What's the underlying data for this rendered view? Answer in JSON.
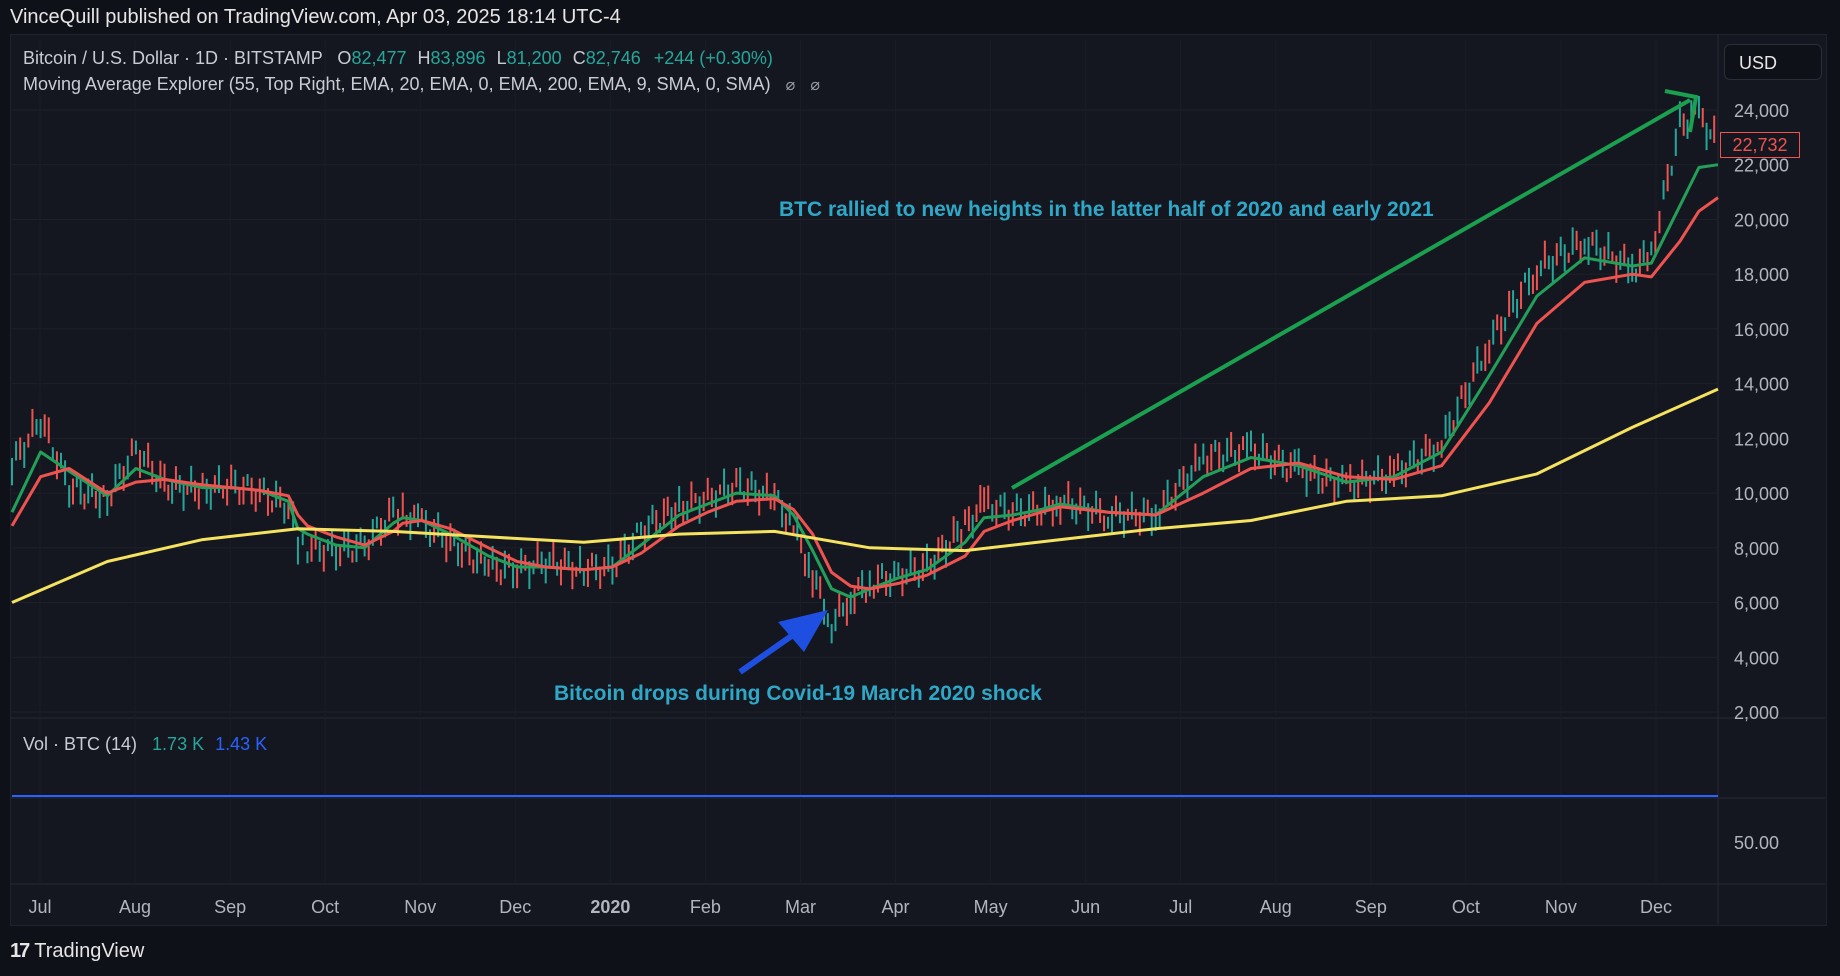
{
  "header": {
    "published_line": "VinceQuill published on TradingView.com, Apr 03, 2025 18:14 UTC-4"
  },
  "legend": {
    "symbol": "Bitcoin / U.S. Dollar · 1D · BITSTAMP",
    "o_label": "O",
    "o_value": "82,477",
    "h_label": "H",
    "h_value": "83,896",
    "l_label": "L",
    "l_value": "81,200",
    "c_label": "C",
    "c_value": "82,746",
    "change": "+244 (+0.30%)",
    "indicator": "Moving Average Explorer (55, Top Right, EMA, 20, EMA, 0, EMA, 200, EMA, 9, SMA, 0, SMA)",
    "indicator_icons": [
      "eye-off-icon",
      "eye-off-icon"
    ]
  },
  "volume_legend": {
    "label": "Vol · BTC (14)",
    "v1": "1.73 K",
    "v2": "1.43 K"
  },
  "currency_button": "USD",
  "last_price_tag": "22,732",
  "annotations": {
    "top": "BTC rallied to new heights in the latter half of 2020 and early 2021",
    "bottom": "Bitcoin drops during Covid-19 March 2020 shock"
  },
  "footer": {
    "brand": "TradingView",
    "logo_icon": "tradingview-logo-icon"
  },
  "colors": {
    "background": "#141720",
    "up": "#26a69a",
    "down": "#ef5350",
    "ema_fast": "#22a05a",
    "ema_mid": "#ef5350",
    "ema_slow": "#f5e35f",
    "volume": "#2962ff",
    "annotation_text": "#2fa7c6",
    "arrow_green": "#1aa04e",
    "arrow_blue": "#1e4fe0"
  },
  "chart_data": {
    "type": "line",
    "y_axis": {
      "ticks": [
        "24,000",
        "22,000",
        "20,000",
        "18,000",
        "16,000",
        "14,000",
        "12,000",
        "10,000",
        "8,000",
        "6,000",
        "4,000",
        "2,000"
      ],
      "ylim": [
        2000,
        24000
      ]
    },
    "volume_axis": {
      "ticks": [
        "50.00"
      ]
    },
    "x_axis": {
      "ticks": [
        "Jul",
        "Aug",
        "Sep",
        "Oct",
        "Nov",
        "Dec",
        "2020",
        "Feb",
        "Mar",
        "Apr",
        "May",
        "Jun",
        "Jul",
        "Aug",
        "Sep",
        "Oct",
        "Nov",
        "Dec"
      ]
    },
    "series": [
      {
        "key": "price",
        "x": [
          0,
          0.3,
          0.6,
          1,
          1.3,
          1.6,
          2,
          2.3,
          2.6,
          2.9,
          3,
          3.1,
          3.4,
          3.7,
          4,
          4.1,
          4.3,
          4.6,
          5,
          5.3,
          5.6,
          6,
          6.3,
          6.6,
          7,
          7.3,
          7.6,
          8,
          8.2,
          8.4,
          8.6,
          8.8,
          9,
          9.3,
          9.6,
          10,
          10.2,
          10.5,
          10.8,
          11,
          11.5,
          12,
          12.5,
          13,
          13.5,
          14,
          14.5,
          15,
          15.5,
          16,
          16.5,
          17,
          17.2,
          17.5,
          17.7,
          17.9
        ],
        "values": [
          11000,
          12700,
          10200,
          9800,
          11600,
          10300,
          10100,
          10300,
          10000,
          9500,
          8200,
          8000,
          7900,
          8100,
          9300,
          9200,
          8900,
          8200,
          7300,
          7200,
          7500,
          7200,
          7300,
          8600,
          9500,
          9800,
          10300,
          9800,
          8800,
          7000,
          5200,
          6200,
          6700,
          7000,
          7300,
          8800,
          9600,
          9300,
          9400,
          9700,
          9200,
          9200,
          11300,
          11600,
          10800,
          10300,
          10700,
          11800,
          15500,
          18200,
          19200,
          18200,
          18700,
          23500,
          23800,
          22732
        ]
      },
      {
        "key": "ema_fast",
        "x": [
          0,
          0.3,
          0.6,
          1,
          1.3,
          1.6,
          2,
          2.3,
          2.6,
          2.9,
          3,
          3.1,
          3.4,
          3.7,
          4,
          4.1,
          4.3,
          4.6,
          5,
          5.3,
          5.6,
          6,
          6.3,
          6.6,
          7,
          7.3,
          7.6,
          8,
          8.2,
          8.4,
          8.6,
          8.8,
          9,
          9.3,
          9.6,
          10,
          10.2,
          10.5,
          10.8,
          11,
          11.5,
          12,
          12.5,
          13,
          13.5,
          14,
          14.5,
          15,
          15.5,
          16,
          16.5,
          17,
          17.2,
          17.5,
          17.7,
          17.9
        ],
        "values": [
          9300,
          11500,
          10800,
          9900,
          10900,
          10500,
          10200,
          10200,
          10100,
          9700,
          8700,
          8500,
          8100,
          8000,
          8900,
          9100,
          9000,
          8500,
          7700,
          7300,
          7300,
          7200,
          7300,
          8100,
          9200,
          9600,
          10000,
          9900,
          9200,
          7900,
          6500,
          6200,
          6500,
          6900,
          7200,
          8200,
          9100,
          9200,
          9400,
          9600,
          9300,
          9200,
          10600,
          11300,
          11000,
          10400,
          10600,
          11500,
          14300,
          17200,
          18600,
          18300,
          18400,
          20500,
          21900,
          22000
        ]
      },
      {
        "key": "ema_mid",
        "x": [
          0,
          0.3,
          0.6,
          1,
          1.3,
          1.6,
          2,
          2.3,
          2.6,
          2.9,
          3,
          3.1,
          3.4,
          3.7,
          4,
          4.1,
          4.3,
          4.6,
          5,
          5.3,
          5.6,
          6,
          6.3,
          6.6,
          7,
          7.3,
          7.6,
          8,
          8.2,
          8.4,
          8.6,
          8.8,
          9,
          9.3,
          9.6,
          10,
          10.2,
          10.5,
          10.8,
          11,
          11.5,
          12,
          12.5,
          13,
          13.5,
          14,
          14.5,
          15,
          15.5,
          16,
          16.5,
          17,
          17.2,
          17.5,
          17.7,
          17.9
        ],
        "values": [
          8800,
          10600,
          10900,
          10000,
          10400,
          10500,
          10300,
          10200,
          10100,
          9900,
          9200,
          8800,
          8400,
          8100,
          8600,
          8900,
          9000,
          8700,
          8000,
          7500,
          7300,
          7200,
          7300,
          7800,
          8800,
          9300,
          9700,
          9800,
          9400,
          8500,
          7100,
          6600,
          6500,
          6700,
          7000,
          7700,
          8600,
          9000,
          9300,
          9500,
          9300,
          9200,
          10000,
          10900,
          11100,
          10600,
          10500,
          11000,
          13300,
          16200,
          17700,
          18000,
          17900,
          19200,
          20300,
          20800
        ]
      },
      {
        "key": "ema_slow",
        "x": [
          0,
          1,
          2,
          3,
          4,
          5,
          6,
          7,
          8,
          9,
          10,
          11,
          12,
          13,
          14,
          15,
          16,
          17,
          17.9
        ],
        "values": [
          6000,
          7500,
          8300,
          8700,
          8600,
          8400,
          8200,
          8500,
          8600,
          8000,
          7900,
          8300,
          8700,
          9000,
          9700,
          9900,
          10700,
          12400,
          13800
        ]
      }
    ]
  }
}
